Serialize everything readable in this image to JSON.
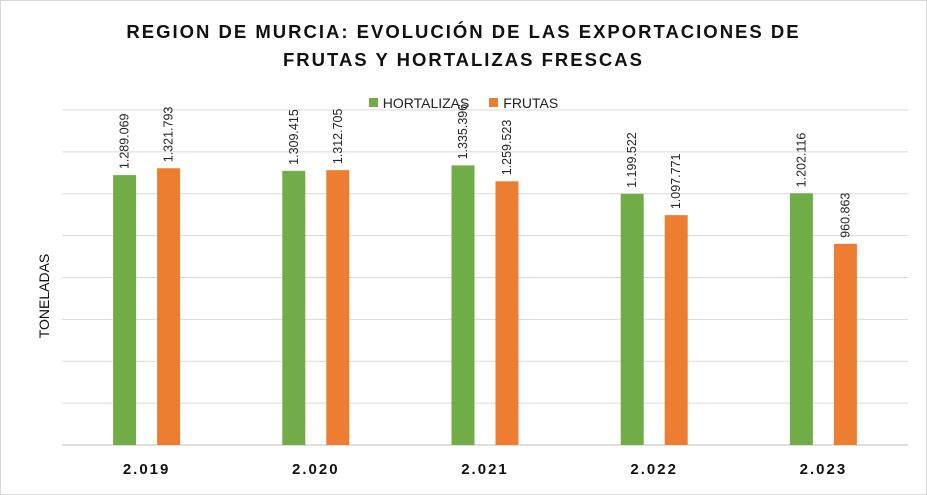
{
  "chart_data": {
    "type": "bar",
    "title_lines": [
      "REGION DE MURCIA: EVOLUCIÓN DE LAS EXPORTACIONES  DE",
      "FRUTAS Y HORTALIZAS FRESCAS"
    ],
    "xlabel": "",
    "ylabel": "TONELADAS",
    "categories": [
      "2.019",
      "2.020",
      "2.021",
      "2.022",
      "2.023"
    ],
    "series": [
      {
        "name": "HORTALIZAS",
        "color": "#70ad47",
        "values": [
          1289069,
          1309415,
          1335396,
          1199522,
          1202116
        ],
        "labels": [
          "1.289.069",
          "1.309.415",
          "1.335.396",
          "1.199.522",
          "1.202.116"
        ]
      },
      {
        "name": "FRUTAS",
        "color": "#ed7d31",
        "values": [
          1321793,
          1312705,
          1259523,
          1097771,
          960863
        ],
        "labels": [
          "1.321.793",
          "1.312.705",
          "1.259.523",
          "1.097.771",
          "960.863"
        ]
      }
    ],
    "ylim": [
      0,
      1600000
    ],
    "y_gridlines": 8,
    "grid": true,
    "legend_position": "top"
  }
}
